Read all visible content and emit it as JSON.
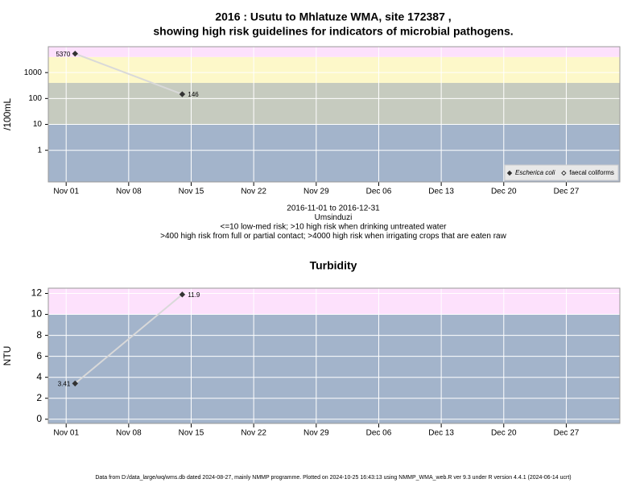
{
  "chart_data": [
    {
      "type": "scatter",
      "title": [
        "2016 : Usutu to Mhlatuze WMA, site 172387 ,",
        "showing high risk guidelines for indicators of microbial pathogens."
      ],
      "subtitle": [
        "2016-11-01 to 2016-12-31",
        "Umsinduzi",
        "<=10 low-med risk; >10 high risk when drinking untreated water",
        ">400 high risk from full or partial contact; >4000 high risk when irrigating crops that are eaten raw"
      ],
      "y_label": "/100mL",
      "y_log": true,
      "x": [
        "2016-11-02",
        "2016-11-14"
      ],
      "series": [
        {
          "name": "Escherica coli",
          "color": "#333333",
          "fill": "#333333",
          "values": [
            5370,
            146
          ]
        },
        {
          "name": "faecal coliforms",
          "color": "#333333",
          "fill": "#ffffff",
          "values": [
            null,
            null
          ]
        }
      ],
      "line_color": "#d9d9d9",
      "xlim": [
        "2016-10-30",
        "2017-01-02"
      ],
      "xticks": [
        {
          "value": "2016-11-01",
          "label": "Nov 01"
        },
        {
          "value": "2016-11-08",
          "label": "Nov 08"
        },
        {
          "value": "2016-11-15",
          "label": "Nov 15"
        },
        {
          "value": "2016-11-22",
          "label": "Nov 22"
        },
        {
          "value": "2016-11-29",
          "label": "Nov 29"
        },
        {
          "value": "2016-12-06",
          "label": "Dec 06"
        },
        {
          "value": "2016-12-13",
          "label": "Dec 13"
        },
        {
          "value": "2016-12-20",
          "label": "Dec 20"
        },
        {
          "value": "2016-12-27",
          "label": "Dec 27"
        }
      ],
      "ylim": [
        0.06,
        10000
      ],
      "yticks": [
        1,
        10,
        100,
        1000
      ],
      "thresholds": [
        10,
        400,
        4000
      ],
      "band_colors": [
        "#a3b4cb",
        "#c6cbbf",
        "#fdf8c9",
        "#fde1fc"
      ],
      "grid": true,
      "legend": "bottom-right"
    },
    {
      "type": "scatter",
      "title": [
        "Turbidity"
      ],
      "y_label": "NTU",
      "y_log": false,
      "x": [
        "2016-11-02",
        "2016-11-14"
      ],
      "values": [
        3.41,
        11.9
      ],
      "color": "#333333",
      "line_color": "#d9d9d9",
      "xlim": [
        "2016-10-30",
        "2017-01-02"
      ],
      "xticks": [
        {
          "value": "2016-11-01",
          "label": "Nov 01"
        },
        {
          "value": "2016-11-08",
          "label": "Nov 08"
        },
        {
          "value": "2016-11-15",
          "label": "Nov 15"
        },
        {
          "value": "2016-11-22",
          "label": "Nov 22"
        },
        {
          "value": "2016-11-29",
          "label": "Nov 29"
        },
        {
          "value": "2016-12-06",
          "label": "Dec 06"
        },
        {
          "value": "2016-12-13",
          "label": "Dec 13"
        },
        {
          "value": "2016-12-20",
          "label": "Dec 20"
        },
        {
          "value": "2016-12-27",
          "label": "Dec 27"
        }
      ],
      "ylim": [
        -0.4,
        12.5
      ],
      "yticks": [
        0,
        2,
        4,
        6,
        8,
        10,
        12
      ],
      "thresholds": [
        10
      ],
      "band_colors": [
        "#a3b4cb",
        "#fde1fc"
      ],
      "grid": true
    }
  ],
  "footer": "Data from D:/data_large/wq/wms.db dated 2024-08-27, mainly NMMP programme. Plotted on 2024-10-25 16:43:13 using NMMP_WMA_web.R ver 9.3 under R version 4.4.1 (2024-06-14 ucrt)"
}
